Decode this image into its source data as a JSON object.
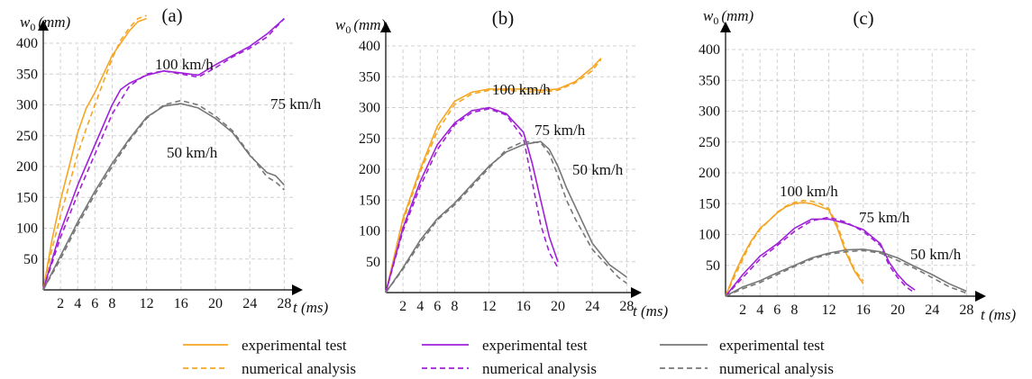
{
  "chart_data": [
    {
      "type": "line",
      "panel_label": "(a)",
      "ylabel": "w0 (mm)",
      "xlabel": "t (ms)",
      "xticks": [
        2,
        4,
        6,
        8,
        12,
        16,
        20,
        24,
        28
      ],
      "yticks": [
        50,
        100,
        150,
        200,
        250,
        300,
        350,
        400
      ],
      "xlim": [
        0,
        30
      ],
      "ylim": [
        0,
        450
      ],
      "grid": true,
      "series": [
        {
          "name": "100 km/h",
          "color": "orange",
          "kind": "experimental test",
          "x": [
            0,
            1,
            2,
            3,
            4,
            5,
            6,
            7,
            8,
            9,
            10,
            11,
            12
          ],
          "y": [
            0,
            80,
            145,
            200,
            255,
            295,
            320,
            350,
            380,
            400,
            420,
            435,
            440
          ]
        },
        {
          "name": "100 km/h",
          "color": "orange",
          "kind": "numerical analysis",
          "x": [
            0,
            1,
            2,
            3,
            4,
            5,
            6,
            7,
            8,
            9,
            10,
            11,
            12
          ],
          "y": [
            0,
            65,
            120,
            170,
            220,
            262,
            300,
            338,
            375,
            405,
            425,
            440,
            445
          ]
        },
        {
          "name": "75 km/h",
          "color": "purple",
          "kind": "experimental test",
          "x": [
            0,
            2,
            4,
            6,
            8,
            9,
            10,
            12,
            14,
            16,
            18,
            20,
            22,
            24,
            26,
            28
          ],
          "y": [
            0,
            95,
            170,
            235,
            300,
            325,
            335,
            348,
            355,
            352,
            348,
            365,
            380,
            395,
            415,
            440
          ]
        },
        {
          "name": "75 km/h",
          "color": "purple",
          "kind": "numerical analysis",
          "x": [
            0,
            2,
            4,
            6,
            8,
            10,
            12,
            14,
            16,
            18,
            20,
            22,
            24,
            26,
            28
          ],
          "y": [
            0,
            85,
            155,
            220,
            285,
            330,
            350,
            355,
            350,
            345,
            360,
            378,
            392,
            410,
            440
          ]
        },
        {
          "name": "50 km/h",
          "color": "gray",
          "kind": "experimental test",
          "x": [
            0,
            2,
            4,
            6,
            8,
            10,
            12,
            14,
            16,
            18,
            20,
            22,
            24,
            26,
            27,
            28
          ],
          "y": [
            0,
            55,
            110,
            160,
            205,
            245,
            280,
            298,
            302,
            295,
            278,
            255,
            218,
            190,
            185,
            170
          ]
        },
        {
          "name": "50 km/h",
          "color": "gray",
          "kind": "numerical analysis",
          "x": [
            0,
            2,
            4,
            6,
            8,
            10,
            12,
            14,
            16,
            18,
            20,
            22,
            24,
            26,
            27,
            28
          ],
          "y": [
            0,
            50,
            105,
            155,
            200,
            242,
            278,
            300,
            307,
            300,
            282,
            258,
            220,
            183,
            175,
            162
          ]
        }
      ]
    },
    {
      "type": "line",
      "panel_label": "(b)",
      "ylabel": "w0 (mm)",
      "xlabel": "t (ms)",
      "xticks": [
        2,
        4,
        6,
        8,
        12,
        16,
        20,
        24,
        28
      ],
      "yticks": [
        50,
        100,
        150,
        200,
        250,
        300,
        350,
        400
      ],
      "xlim": [
        0,
        30
      ],
      "ylim": [
        0,
        450
      ],
      "grid": true,
      "series": [
        {
          "name": "100 km/h",
          "color": "orange",
          "kind": "experimental test",
          "x": [
            0,
            2,
            4,
            6,
            8,
            10,
            12,
            14,
            16,
            18,
            20,
            22,
            24,
            25
          ],
          "y": [
            0,
            120,
            200,
            270,
            310,
            325,
            330,
            330,
            330,
            328,
            330,
            342,
            365,
            380
          ]
        },
        {
          "name": "100 km/h",
          "color": "orange",
          "kind": "numerical analysis",
          "x": [
            0,
            2,
            4,
            6,
            8,
            10,
            12,
            14,
            16,
            18,
            20,
            22,
            24,
            25
          ],
          "y": [
            0,
            115,
            195,
            262,
            305,
            322,
            328,
            328,
            326,
            325,
            328,
            340,
            360,
            378
          ]
        },
        {
          "name": "75 km/h",
          "color": "purple",
          "kind": "experimental test",
          "x": [
            0,
            2,
            4,
            6,
            8,
            10,
            12,
            14,
            16,
            17,
            18,
            19,
            20
          ],
          "y": [
            0,
            105,
            180,
            240,
            275,
            295,
            300,
            290,
            260,
            210,
            150,
            90,
            50
          ]
        },
        {
          "name": "75 km/h",
          "color": "purple",
          "kind": "numerical analysis",
          "x": [
            0,
            2,
            4,
            6,
            8,
            10,
            12,
            14,
            16,
            17,
            18,
            19,
            20
          ],
          "y": [
            0,
            100,
            172,
            232,
            272,
            292,
            298,
            288,
            250,
            180,
            110,
            65,
            40
          ]
        },
        {
          "name": "50 km/h",
          "color": "gray",
          "kind": "experimental test",
          "x": [
            0,
            2,
            4,
            6,
            8,
            10,
            12,
            14,
            16,
            18,
            19,
            20,
            21,
            22,
            24,
            26,
            27,
            28
          ],
          "y": [
            0,
            40,
            85,
            120,
            145,
            175,
            205,
            228,
            240,
            245,
            232,
            205,
            170,
            140,
            80,
            45,
            35,
            25
          ]
        },
        {
          "name": "50 km/h",
          "color": "gray",
          "kind": "numerical analysis",
          "x": [
            0,
            2,
            4,
            6,
            8,
            10,
            12,
            14,
            16,
            18,
            19,
            20,
            21,
            22,
            24,
            26,
            27,
            28
          ],
          "y": [
            0,
            38,
            80,
            118,
            142,
            172,
            202,
            232,
            245,
            243,
            225,
            190,
            150,
            120,
            70,
            40,
            25,
            15
          ]
        }
      ]
    },
    {
      "type": "line",
      "panel_label": "(c)",
      "ylabel": "w0 (mm)",
      "xlabel": "t (ms)",
      "xticks": [
        2,
        4,
        6,
        8,
        12,
        16,
        20,
        24,
        28
      ],
      "yticks": [
        50,
        100,
        150,
        200,
        250,
        300,
        350,
        400
      ],
      "xlim": [
        0,
        30
      ],
      "ylim": [
        0,
        450
      ],
      "grid": true,
      "series": [
        {
          "name": "100 km/h",
          "color": "orange",
          "kind": "experimental test",
          "x": [
            0,
            1,
            2,
            3,
            4,
            5,
            6,
            7,
            8,
            9,
            10,
            11,
            12,
            13,
            14,
            15,
            16
          ],
          "y": [
            0,
            35,
            65,
            90,
            110,
            122,
            135,
            145,
            150,
            152,
            150,
            145,
            140,
            110,
            70,
            40,
            20
          ]
        },
        {
          "name": "100 km/h",
          "color": "orange",
          "kind": "numerical analysis",
          "x": [
            0,
            1,
            2,
            3,
            4,
            5,
            6,
            7,
            8,
            9,
            10,
            11,
            12,
            13,
            14,
            15,
            16
          ],
          "y": [
            0,
            30,
            60,
            88,
            108,
            122,
            136,
            146,
            152,
            155,
            154,
            150,
            142,
            115,
            75,
            42,
            25
          ]
        },
        {
          "name": "75 km/h",
          "color": "purple",
          "kind": "experimental test",
          "x": [
            0,
            2,
            4,
            6,
            8,
            10,
            12,
            14,
            16,
            18,
            19,
            20,
            21,
            22
          ],
          "y": [
            0,
            35,
            65,
            85,
            110,
            125,
            125,
            118,
            108,
            85,
            55,
            35,
            20,
            10
          ]
        },
        {
          "name": "75 km/h",
          "color": "purple",
          "kind": "numerical analysis",
          "x": [
            0,
            2,
            4,
            6,
            8,
            10,
            12,
            14,
            16,
            18,
            19,
            20,
            21,
            22
          ],
          "y": [
            0,
            30,
            60,
            82,
            105,
            122,
            128,
            120,
            105,
            82,
            50,
            30,
            15,
            5
          ]
        },
        {
          "name": "50 km/h",
          "color": "gray",
          "kind": "experimental test",
          "x": [
            0,
            2,
            4,
            6,
            8,
            10,
            12,
            14,
            16,
            18,
            20,
            22,
            24,
            26,
            28
          ],
          "y": [
            0,
            15,
            25,
            38,
            50,
            62,
            70,
            75,
            76,
            72,
            62,
            48,
            35,
            20,
            8
          ]
        },
        {
          "name": "50 km/h",
          "color": "gray",
          "kind": "numerical analysis",
          "x": [
            0,
            2,
            4,
            6,
            8,
            10,
            12,
            14,
            16,
            18,
            20,
            22,
            24,
            26,
            28
          ],
          "y": [
            0,
            12,
            22,
            35,
            48,
            60,
            68,
            72,
            74,
            70,
            58,
            45,
            30,
            15,
            5
          ]
        }
      ]
    }
  ],
  "legend": {
    "groups": [
      {
        "color_key": "orange",
        "experimental": "experimental test",
        "numerical": "numerical analysis"
      },
      {
        "color_key": "purple",
        "experimental": "experimental test",
        "numerical": "numerical analysis"
      },
      {
        "color_key": "gray",
        "experimental": "experimental test",
        "numerical": "numerical analysis"
      }
    ]
  },
  "colors": {
    "orange": "#f5a623",
    "purple": "#a020d8",
    "gray": "#777777",
    "grid": "#d0d0d0",
    "axis": "#000000"
  }
}
